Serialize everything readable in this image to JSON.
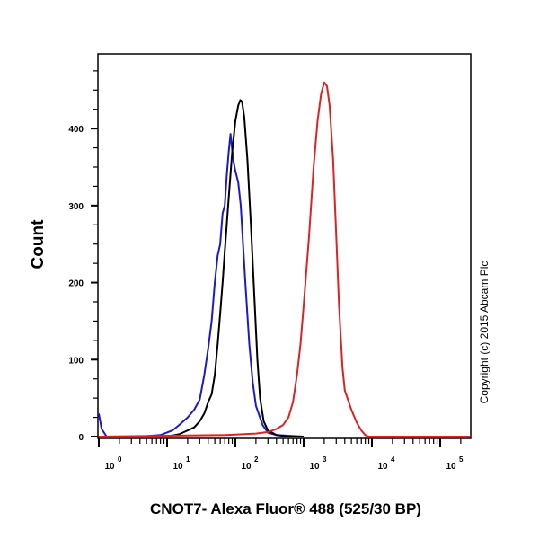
{
  "chart_data": {
    "type": "line",
    "title": "",
    "xlabel": "CNOT7- Alexa Fluor® 488 (525/30 BP)",
    "ylabel": "Count",
    "annotation": "Copyright (c) 2015 Abcam Plc",
    "x_scale": "log",
    "xlim": [
      1,
      280000
    ],
    "ylim": [
      0,
      497
    ],
    "x_ticks": [
      {
        "value": 1,
        "base": "10",
        "exp": "0"
      },
      {
        "value": 10,
        "base": "10",
        "exp": "1"
      },
      {
        "value": 100,
        "base": "10",
        "exp": "2"
      },
      {
        "value": 1000,
        "base": "10",
        "exp": "3"
      },
      {
        "value": 10000,
        "base": "10",
        "exp": "4"
      },
      {
        "value": 100000,
        "base": "10",
        "exp": "5"
      }
    ],
    "y_ticks": [
      {
        "value": 0,
        "label": "0"
      },
      {
        "value": 100,
        "label": "100"
      },
      {
        "value": 200,
        "label": "200"
      },
      {
        "value": 300,
        "label": "300"
      },
      {
        "value": 400,
        "label": "400"
      }
    ],
    "y_minor_step": 25,
    "grid": false,
    "legend": "none",
    "series": [
      {
        "color": "#1a1acc",
        "points": [
          [
            1,
            30
          ],
          [
            1.1,
            10
          ],
          [
            1.3,
            0
          ],
          [
            4,
            0
          ],
          [
            8,
            2
          ],
          [
            12,
            8
          ],
          [
            15,
            15
          ],
          [
            20,
            25
          ],
          [
            25,
            35
          ],
          [
            30,
            48
          ],
          [
            35,
            80
          ],
          [
            40,
            115
          ],
          [
            45,
            150
          ],
          [
            50,
            200
          ],
          [
            55,
            235
          ],
          [
            60,
            250
          ],
          [
            65,
            290
          ],
          [
            70,
            300
          ],
          [
            75,
            340
          ],
          [
            80,
            370
          ],
          [
            85,
            393
          ],
          [
            90,
            372
          ],
          [
            95,
            355
          ],
          [
            100,
            345
          ],
          [
            110,
            330
          ],
          [
            120,
            300
          ],
          [
            140,
            200
          ],
          [
            160,
            120
          ],
          [
            180,
            70
          ],
          [
            200,
            40
          ],
          [
            250,
            15
          ],
          [
            300,
            5
          ],
          [
            400,
            2
          ],
          [
            1000,
            0
          ]
        ]
      },
      {
        "color": "#000000",
        "points": [
          [
            1,
            0
          ],
          [
            10,
            0
          ],
          [
            15,
            3
          ],
          [
            20,
            8
          ],
          [
            25,
            12
          ],
          [
            30,
            20
          ],
          [
            35,
            30
          ],
          [
            40,
            45
          ],
          [
            45,
            55
          ],
          [
            50,
            80
          ],
          [
            55,
            120
          ],
          [
            60,
            160
          ],
          [
            65,
            200
          ],
          [
            70,
            240
          ],
          [
            80,
            310
          ],
          [
            90,
            370
          ],
          [
            100,
            410
          ],
          [
            110,
            430
          ],
          [
            118,
            437
          ],
          [
            125,
            435
          ],
          [
            135,
            415
          ],
          [
            150,
            360
          ],
          [
            170,
            270
          ],
          [
            190,
            180
          ],
          [
            210,
            100
          ],
          [
            230,
            50
          ],
          [
            260,
            20
          ],
          [
            300,
            8
          ],
          [
            400,
            2
          ],
          [
            600,
            0
          ],
          [
            1000,
            0
          ]
        ]
      },
      {
        "color": "#dd2222",
        "points": [
          [
            1,
            0
          ],
          [
            70,
            2
          ],
          [
            200,
            4
          ],
          [
            300,
            6
          ],
          [
            400,
            10
          ],
          [
            500,
            15
          ],
          [
            600,
            25
          ],
          [
            700,
            45
          ],
          [
            800,
            80
          ],
          [
            900,
            120
          ],
          [
            1000,
            170
          ],
          [
            1200,
            260
          ],
          [
            1400,
            350
          ],
          [
            1600,
            410
          ],
          [
            1800,
            445
          ],
          [
            2000,
            460
          ],
          [
            2200,
            455
          ],
          [
            2400,
            430
          ],
          [
            2700,
            360
          ],
          [
            3000,
            260
          ],
          [
            3300,
            170
          ],
          [
            3700,
            90
          ],
          [
            4000,
            60
          ],
          [
            5000,
            35
          ],
          [
            6000,
            18
          ],
          [
            7000,
            8
          ],
          [
            8000,
            2
          ],
          [
            9000,
            0
          ],
          [
            280000,
            0
          ]
        ]
      }
    ]
  }
}
